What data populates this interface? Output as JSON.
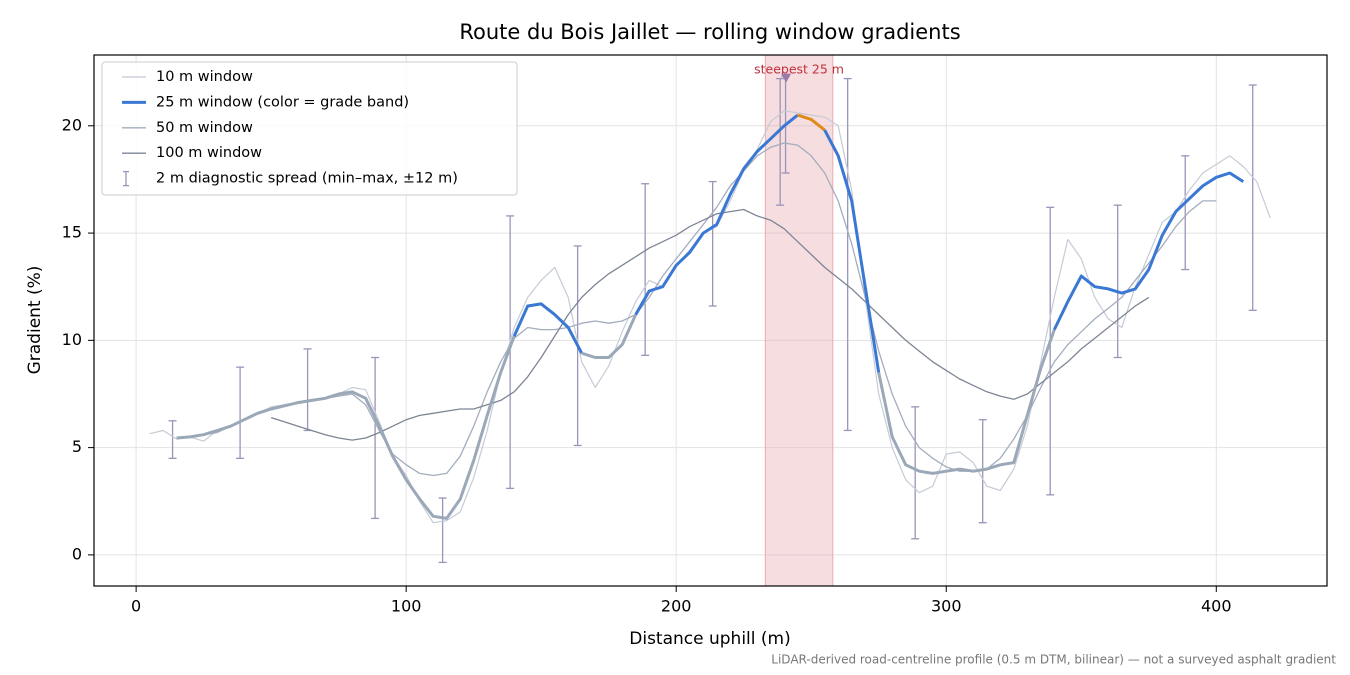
{
  "chart_data": {
    "type": "line",
    "title": "Route du Bois Jaillet — rolling window gradients",
    "xlabel": "Distance uphill (m)",
    "ylabel": "Gradient (%)",
    "footnote": "LiDAR-derived road-centreline profile (0.5 m DTM, bilinear) — not a surveyed asphalt gradient",
    "xlim": [
      -15.6,
      441
    ],
    "xticks": [
      0,
      100,
      200,
      300,
      400
    ],
    "ylim": [
      -1.45,
      23.3
    ],
    "yticks": [
      0,
      5,
      10,
      15,
      20
    ],
    "grid": true,
    "legend": "upper left",
    "highlight": {
      "x": [
        233,
        258
      ],
      "label": "steepest 25 m",
      "color": "#e8aab2",
      "marker": [
        240.7,
        22.2
      ],
      "marker_color": "#9a7aa8",
      "label_color": "#c0303a"
    },
    "series": [
      {
        "name": "10 m window",
        "color": "#c5cbd6",
        "width": 1.2,
        "x": [
          5,
          10,
          15,
          20,
          25,
          30,
          35,
          40,
          45,
          50,
          55,
          60,
          65,
          70,
          75,
          80,
          85,
          90,
          95,
          100,
          105,
          110,
          115,
          120,
          125,
          130,
          135,
          140,
          145,
          150,
          155,
          160,
          165,
          170,
          175,
          180,
          185,
          190,
          195,
          200,
          205,
          210,
          215,
          220,
          225,
          230,
          235,
          240,
          245,
          250,
          255,
          260,
          265,
          270,
          275,
          280,
          285,
          290,
          295,
          300,
          305,
          310,
          315,
          320,
          325,
          330,
          335,
          340,
          345,
          350,
          355,
          360,
          365,
          370,
          375,
          380,
          385,
          390,
          395,
          400,
          405,
          410,
          415,
          420
        ],
        "values": [
          5.65,
          5.8,
          5.4,
          5.5,
          5.3,
          5.8,
          6.0,
          6.3,
          6.6,
          6.9,
          7.0,
          7.1,
          7.2,
          7.3,
          7.5,
          7.8,
          7.7,
          6.2,
          4.6,
          3.7,
          2.5,
          1.5,
          1.6,
          2.0,
          3.6,
          5.8,
          8.5,
          10.6,
          12.0,
          12.8,
          13.4,
          12.0,
          9.0,
          7.8,
          8.8,
          10.4,
          11.8,
          12.8,
          12.5,
          13.5,
          14.2,
          15.0,
          15.3,
          16.5,
          17.9,
          18.9,
          20.2,
          20.7,
          20.6,
          20.5,
          20.4,
          20.0,
          17.0,
          12.0,
          7.5,
          5.0,
          3.5,
          2.9,
          3.2,
          4.7,
          4.8,
          4.3,
          3.2,
          3.0,
          4.0,
          6.0,
          9.0,
          12.0,
          14.7,
          13.8,
          12.0,
          11.0,
          10.6,
          12.5,
          14.0,
          15.5,
          16.0,
          17.0,
          17.8,
          18.2,
          18.6,
          18.1,
          17.4,
          15.7
        ]
      },
      {
        "name": "25 m window (color = grade band)",
        "color": "#3a78d4",
        "width": 3,
        "x": [
          15,
          20,
          25,
          30,
          35,
          40,
          45,
          50,
          55,
          60,
          65,
          70,
          75,
          80,
          85,
          90,
          95,
          100,
          105,
          110,
          115,
          120,
          125,
          130,
          135,
          140,
          145,
          150,
          155,
          160,
          165,
          170,
          175,
          180,
          185,
          190,
          195,
          200,
          205,
          210,
          215,
          220,
          225,
          230,
          235,
          240,
          245,
          250,
          255,
          260,
          265,
          270,
          275,
          280,
          285,
          290,
          295,
          300,
          305,
          310,
          315,
          320,
          325,
          330,
          335,
          340,
          345,
          350,
          355,
          360,
          365,
          370,
          375,
          380,
          385,
          390,
          395,
          400,
          405,
          410
        ],
        "values": [
          5.45,
          5.5,
          5.6,
          5.8,
          6.0,
          6.3,
          6.6,
          6.8,
          6.95,
          7.1,
          7.2,
          7.3,
          7.5,
          7.6,
          7.3,
          6.0,
          4.6,
          3.5,
          2.6,
          1.8,
          1.7,
          2.6,
          4.4,
          6.5,
          8.5,
          10.2,
          11.6,
          11.7,
          11.2,
          10.6,
          9.4,
          9.2,
          9.2,
          9.8,
          11.2,
          12.3,
          12.5,
          13.5,
          14.1,
          15.0,
          15.4,
          16.8,
          18.0,
          18.8,
          19.4,
          20.0,
          20.5,
          20.3,
          19.8,
          18.6,
          16.5,
          12.5,
          8.5,
          5.5,
          4.2,
          3.9,
          3.8,
          3.9,
          4.0,
          3.9,
          4.0,
          4.2,
          4.3,
          6.5,
          8.7,
          10.5,
          11.8,
          13.0,
          12.5,
          12.4,
          12.2,
          12.4,
          13.3,
          14.9,
          16.0,
          16.6,
          17.2,
          17.6,
          17.8,
          17.4
        ],
        "point_colors": [
          "#9aa8b8",
          "#9aa8b8",
          "#9aa8b8",
          "#9aa8b8",
          "#9aa8b8",
          "#9aa8b8",
          "#9aa8b8",
          "#9aa8b8",
          "#9aa8b8",
          "#9aa8b8",
          "#9aa8b8",
          "#9aa8b8",
          "#9aa8b8",
          "#9aa8b8",
          "#9aa8b8",
          "#9aa8b8",
          "#9aa8b8",
          "#9aa8b8",
          "#9aa8b8",
          "#9aa8b8",
          "#9aa8b8",
          "#9aa8b8",
          "#9aa8b8",
          "#9aa8b8",
          "#9aa8b8",
          "#3a78d4",
          "#3a78d4",
          "#3a78d4",
          "#3a78d4",
          "#3a78d4",
          "#9aa8b8",
          "#9aa8b8",
          "#9aa8b8",
          "#9aa8b8",
          "#3a78d4",
          "#3a78d4",
          "#3a78d4",
          "#3a78d4",
          "#3a78d4",
          "#3a78d4",
          "#3a78d4",
          "#3a78d4",
          "#3a78d4",
          "#3a78d4",
          "#3a78d4",
          "#3a78d4",
          "#e08a1a",
          "#e08a1a",
          "#3a78d4",
          "#3a78d4",
          "#3a78d4",
          "#3a78d4",
          "#9aa8b8",
          "#9aa8b8",
          "#9aa8b8",
          "#9aa8b8",
          "#9aa8b8",
          "#9aa8b8",
          "#9aa8b8",
          "#9aa8b8",
          "#9aa8b8",
          "#9aa8b8",
          "#9aa8b8",
          "#9aa8b8",
          "#9aa8b8",
          "#3a78d4",
          "#3a78d4",
          "#3a78d4",
          "#3a78d4",
          "#3a78d4",
          "#3a78d4",
          "#3a78d4",
          "#3a78d4",
          "#3a78d4",
          "#3a78d4",
          "#3a78d4",
          "#3a78d4",
          "#3a78d4",
          "#3a78d4",
          "#3a78d4"
        ]
      },
      {
        "name": "50 m window",
        "color": "#a3adbe",
        "width": 1.3,
        "x": [
          25,
          30,
          35,
          40,
          45,
          50,
          55,
          60,
          65,
          70,
          75,
          80,
          85,
          90,
          95,
          100,
          105,
          110,
          115,
          120,
          125,
          130,
          135,
          140,
          145,
          150,
          155,
          160,
          165,
          170,
          175,
          180,
          185,
          190,
          195,
          200,
          205,
          210,
          215,
          220,
          225,
          230,
          235,
          240,
          245,
          250,
          255,
          260,
          265,
          270,
          275,
          280,
          285,
          290,
          295,
          300,
          305,
          310,
          315,
          320,
          325,
          330,
          335,
          340,
          345,
          350,
          355,
          360,
          365,
          370,
          375,
          380,
          385,
          390,
          395,
          400
        ],
        "values": [
          5.6,
          5.7,
          6.0,
          6.3,
          6.6,
          6.8,
          7.0,
          7.1,
          7.2,
          7.3,
          7.4,
          7.5,
          7.0,
          5.8,
          4.7,
          4.2,
          3.8,
          3.7,
          3.8,
          4.6,
          6.0,
          7.6,
          9.0,
          10.1,
          10.6,
          10.5,
          10.5,
          10.6,
          10.8,
          10.9,
          10.8,
          10.9,
          11.2,
          12.0,
          13.0,
          13.8,
          14.6,
          15.4,
          16.2,
          17.2,
          17.9,
          18.6,
          19.0,
          19.2,
          19.1,
          18.6,
          17.8,
          16.5,
          14.5,
          12.0,
          9.5,
          7.5,
          6.0,
          5.0,
          4.5,
          4.1,
          3.9,
          3.9,
          4.0,
          4.5,
          5.4,
          6.5,
          7.8,
          9.0,
          9.8,
          10.4,
          11.0,
          11.5,
          12.0,
          12.8,
          13.6,
          14.4,
          15.3,
          16.0,
          16.5,
          16.5
        ]
      },
      {
        "name": "100 m window",
        "color": "#7d8594",
        "width": 1.3,
        "x": [
          50,
          55,
          60,
          65,
          70,
          75,
          80,
          85,
          90,
          95,
          100,
          105,
          110,
          115,
          120,
          125,
          130,
          135,
          140,
          145,
          150,
          155,
          160,
          165,
          170,
          175,
          180,
          185,
          190,
          195,
          200,
          205,
          210,
          215,
          220,
          225,
          230,
          235,
          240,
          245,
          250,
          255,
          260,
          265,
          270,
          275,
          280,
          285,
          290,
          295,
          300,
          305,
          310,
          315,
          320,
          325,
          330,
          335,
          340,
          345,
          350,
          355,
          360,
          365,
          370,
          375
        ],
        "values": [
          6.4,
          6.2,
          6.0,
          5.8,
          5.6,
          5.45,
          5.35,
          5.45,
          5.7,
          6.0,
          6.3,
          6.5,
          6.6,
          6.7,
          6.8,
          6.8,
          7.0,
          7.2,
          7.6,
          8.3,
          9.2,
          10.2,
          11.2,
          12.0,
          12.6,
          13.1,
          13.5,
          13.9,
          14.3,
          14.6,
          14.9,
          15.3,
          15.6,
          15.9,
          16.0,
          16.1,
          15.8,
          15.6,
          15.2,
          14.6,
          14.0,
          13.4,
          12.9,
          12.4,
          11.8,
          11.2,
          10.6,
          10.0,
          9.5,
          9.0,
          8.6,
          8.2,
          7.9,
          7.6,
          7.4,
          7.25,
          7.5,
          8.0,
          8.5,
          9.0,
          9.6,
          10.1,
          10.6,
          11.1,
          11.6,
          12.0
        ]
      }
    ],
    "error_bars": {
      "name": "2 m diagnostic spread (min–max, ±12 m)",
      "color": "#9a94b8",
      "x": [
        13.5,
        38.5,
        63.5,
        88.5,
        113.5,
        138.5,
        163.5,
        188.5,
        213.5,
        238.5,
        240.5,
        263.5,
        288.5,
        313.5,
        338.5,
        363.5,
        388.5,
        413.5
      ],
      "low": [
        4.5,
        4.5,
        5.8,
        1.7,
        -0.35,
        3.1,
        5.1,
        9.3,
        11.6,
        16.3,
        17.8,
        5.8,
        0.75,
        1.5,
        2.8,
        9.2,
        13.3,
        11.4
      ],
      "high": [
        6.25,
        8.75,
        9.6,
        9.2,
        2.65,
        15.8,
        14.4,
        17.3,
        17.4,
        22.2,
        22.3,
        22.2,
        6.9,
        6.3,
        16.2,
        16.3,
        18.6,
        21.9
      ]
    }
  }
}
